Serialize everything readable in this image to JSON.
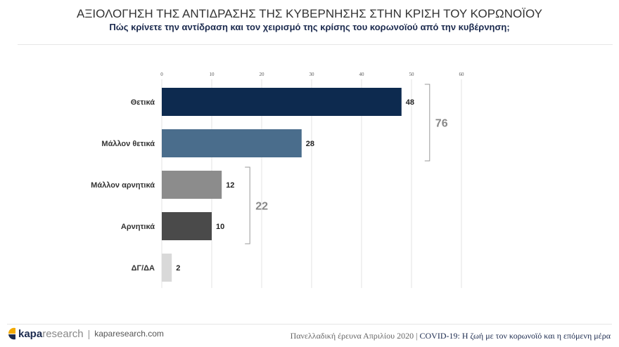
{
  "header": {
    "title": "ΑΞΙΟΛΟΓΗΣΗ ΤΗΣ ΑΝΤΙΔΡΑΣΗΣ ΤΗΣ ΚΥΒΕΡΝΗΣΗΣ ΣΤΗΝ ΚΡΙΣΗ ΤΟΥ ΚΟΡΩΝΟΪΟΥ",
    "subtitle": "Πώς κρίνετε την αντίδραση και τον χειρισμό της κρίσης του κορωνοϊού από την κυβέρνηση;"
  },
  "chart_data": {
    "type": "bar",
    "orientation": "horizontal",
    "categories": [
      "Θετικά",
      "Μάλλον θετικά",
      "Μάλλον αρνητικά",
      "Αρνητικά",
      "ΔΓ/ΔΑ"
    ],
    "values": [
      48,
      28,
      12,
      10,
      2
    ],
    "colors": [
      "#0d2a4f",
      "#4a6d8c",
      "#8c8c8c",
      "#4a4a4a",
      "#d9d9d9"
    ],
    "xlim": [
      0,
      60
    ],
    "xticks": [
      0,
      10,
      20,
      30,
      40,
      50,
      60
    ],
    "xaxis_position": "top",
    "grid": true,
    "groups": [
      {
        "categories": [
          "Θετικά",
          "Μάλλον θετικά"
        ],
        "total": "76"
      },
      {
        "categories": [
          "Μάλλον αρνητικά",
          "Αρνητικά"
        ],
        "total": "22"
      }
    ]
  },
  "footer": {
    "brand_bold": "kapa",
    "brand_light": "research",
    "url": "kaparesearch.com",
    "survey": "Πανελλαδική έρευνα Απριλίου 2020 |",
    "series": "COVID-19: Η ζωή με τον κορωνοϊό και η επόμενη μέρα"
  }
}
